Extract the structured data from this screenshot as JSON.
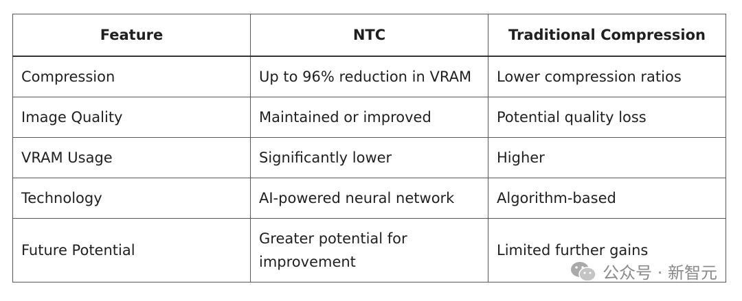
{
  "table": {
    "headers": [
      "Feature",
      "NTC",
      "Traditional Compression"
    ],
    "rows": [
      [
        "Compression",
        "Up to 96% reduction in VRAM",
        "Lower compression ratios"
      ],
      [
        "Image Quality",
        "Maintained or improved",
        "Potential quality loss"
      ],
      [
        "VRAM Usage",
        "Significantly lower",
        "Higher"
      ],
      [
        "Technology",
        "AI-powered neural network",
        "Algorithm-based"
      ],
      [
        "Future Potential",
        "Greater potential for improvement",
        "Limited further gains"
      ]
    ]
  },
  "watermark": {
    "text": "公众号 · 新智元",
    "icon": "wechat-icon"
  }
}
